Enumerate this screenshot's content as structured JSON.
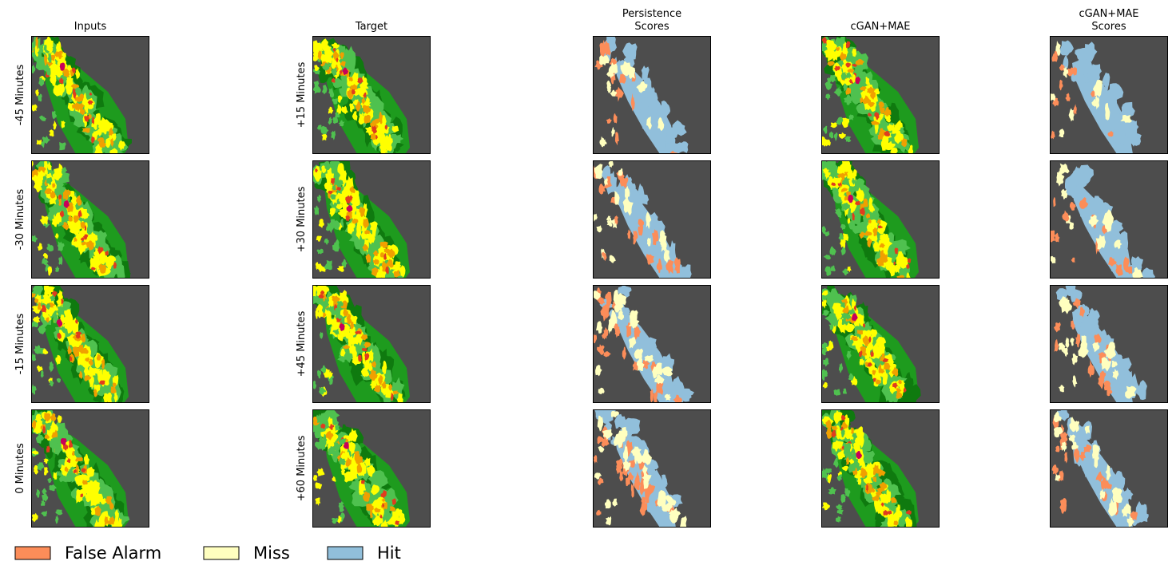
{
  "chart_data": {
    "type": "heatmap",
    "columns": [
      {
        "id": "inputs",
        "title_lines": [
          "Inputs"
        ],
        "kind": "radar"
      },
      {
        "id": "target",
        "title_lines": [
          "Target"
        ],
        "kind": "radar"
      },
      {
        "id": "persistence",
        "title_lines": [
          "Persistence",
          "Scores"
        ],
        "kind": "scores"
      },
      {
        "id": "cgan",
        "title_lines": [
          "cGAN+MAE"
        ],
        "kind": "radar"
      },
      {
        "id": "cgan_scores",
        "title_lines": [
          "cGAN+MAE",
          "Scores"
        ],
        "kind": "scores"
      }
    ],
    "rows": [
      {
        "inputs_label": "-45 Minutes",
        "target_label": "+15 Minutes"
      },
      {
        "inputs_label": "-30 Minutes",
        "target_label": "+30 Minutes"
      },
      {
        "inputs_label": "-15 Minutes",
        "target_label": "+45 Minutes"
      },
      {
        "inputs_label": "0 Minutes",
        "target_label": "+60 Minutes"
      }
    ],
    "legend": {
      "placement": "bottom-left",
      "entries": [
        {
          "label": "False Alarm",
          "color": "#fc8d59"
        },
        {
          "label": "Miss",
          "color": "#ffffbf"
        },
        {
          "label": "Hit",
          "color": "#91bfdb"
        }
      ]
    },
    "colors": {
      "background": "#4d4d4d",
      "radar_scale": [
        "#0f7a0f",
        "#1e9b1e",
        "#4fc14f",
        "#ffff00",
        "#f0a000",
        "#e03c1e",
        "#c8005a"
      ],
      "false_alarm": "#fc8d59",
      "miss": "#ffffbf",
      "hit": "#91bfdb"
    },
    "grid": false,
    "ticks": false
  }
}
